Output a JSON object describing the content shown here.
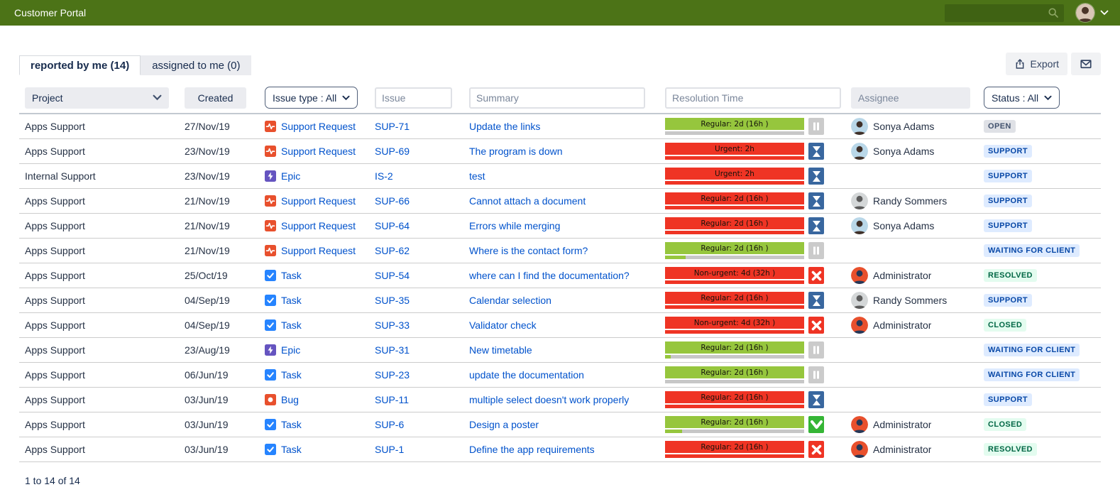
{
  "topbar": {
    "title": "Customer Portal",
    "search_value": ""
  },
  "tabs": [
    {
      "label": "reported by me (14)",
      "active": true
    },
    {
      "label": "assigned to me (0)",
      "active": false
    }
  ],
  "toolbar": {
    "export_label": "Export",
    "email_icon": "envelope-icon"
  },
  "filters": {
    "project_label": "Project",
    "created_label": "Created",
    "issue_type_label": "Issue type : All",
    "issue_placeholder": "Issue",
    "summary_placeholder": "Summary",
    "resolution_placeholder": "Resolution Time",
    "assignee_placeholder": "Assignee",
    "status_label": "Status : All"
  },
  "colors": {
    "header_green": "#4c7317",
    "sla_green": "#96c63d",
    "sla_red": "#ef3424",
    "sla_track_gray": "#c7c7c7",
    "pause_icon_bg": "#cbcbcb",
    "hourglass_icon_bg": "#39679f",
    "x_icon_bg": "#ef3424",
    "check_icon_bg": "#35b535",
    "link_blue": "#0052cc",
    "badge_gray_bg": "#dfe1e6",
    "badge_blue_bg": "#deebff",
    "badge_green_bg": "#e3fcef"
  },
  "table": {
    "rows": [
      {
        "project": "Apps Support",
        "created": "27/Nov/19",
        "type": "support",
        "type_label": "Support Request",
        "issue_key": "SUP-71",
        "summary": "Update the links",
        "sla": {
          "label": "Regular: 2d (16h )",
          "bar": "green",
          "fill_pct": 0,
          "icon": "pause"
        },
        "assignee": "Sonya Adams",
        "avatar": "sonya",
        "status": "OPEN",
        "status_color": "gray"
      },
      {
        "project": "Apps Support",
        "created": "23/Nov/19",
        "type": "support",
        "type_label": "Support Request",
        "issue_key": "SUP-69",
        "summary": "The program is down",
        "sla": {
          "label": "Urgent: 2h",
          "bar": "red",
          "fill_pct": 100,
          "icon": "hourglass"
        },
        "assignee": "Sonya Adams",
        "avatar": "sonya",
        "status": "SUPPORT",
        "status_color": "blue"
      },
      {
        "project": "Internal Support",
        "created": "23/Nov/19",
        "type": "epic",
        "type_label": "Epic",
        "issue_key": "IS-2",
        "summary": "test",
        "sla": {
          "label": "Urgent: 2h",
          "bar": "red",
          "fill_pct": 100,
          "icon": "hourglass"
        },
        "assignee": "",
        "avatar": null,
        "status": "SUPPORT",
        "status_color": "blue"
      },
      {
        "project": "Apps Support",
        "created": "21/Nov/19",
        "type": "support",
        "type_label": "Support Request",
        "issue_key": "SUP-66",
        "summary": "Cannot attach a document",
        "sla": {
          "label": "Regular: 2d (16h )",
          "bar": "red",
          "fill_pct": 100,
          "icon": "hourglass"
        },
        "assignee": "Randy Sommers",
        "avatar": "randy",
        "status": "SUPPORT",
        "status_color": "blue"
      },
      {
        "project": "Apps Support",
        "created": "21/Nov/19",
        "type": "support",
        "type_label": "Support Request",
        "issue_key": "SUP-64",
        "summary": "Errors while merging",
        "sla": {
          "label": "Regular: 2d (16h )",
          "bar": "red",
          "fill_pct": 100,
          "icon": "hourglass"
        },
        "assignee": "Sonya Adams",
        "avatar": "sonya",
        "status": "SUPPORT",
        "status_color": "blue"
      },
      {
        "project": "Apps Support",
        "created": "21/Nov/19",
        "type": "support",
        "type_label": "Support Request",
        "issue_key": "SUP-62",
        "summary": "Where is the contact form?",
        "sla": {
          "label": "Regular: 2d (16h )",
          "bar": "green",
          "fill_pct": 15,
          "icon": "pause"
        },
        "assignee": "",
        "avatar": null,
        "status": "WAITING FOR CLIENT",
        "status_color": "blue"
      },
      {
        "project": "Apps Support",
        "created": "25/Oct/19",
        "type": "task",
        "type_label": "Task",
        "issue_key": "SUP-54",
        "summary": "where can I find the documentation?",
        "sla": {
          "label": "Non-urgent: 4d (32h )",
          "bar": "red",
          "fill_pct": 100,
          "icon": "x"
        },
        "assignee": "Administrator",
        "avatar": "admin",
        "status": "RESOLVED",
        "status_color": "green"
      },
      {
        "project": "Apps Support",
        "created": "04/Sep/19",
        "type": "task",
        "type_label": "Task",
        "issue_key": "SUP-35",
        "summary": "Calendar selection",
        "sla": {
          "label": "Regular: 2d (16h )",
          "bar": "red",
          "fill_pct": 100,
          "icon": "hourglass"
        },
        "assignee": "Randy Sommers",
        "avatar": "randy",
        "status": "SUPPORT",
        "status_color": "blue"
      },
      {
        "project": "Apps Support",
        "created": "04/Sep/19",
        "type": "task",
        "type_label": "Task",
        "issue_key": "SUP-33",
        "summary": "Validator check",
        "sla": {
          "label": "Non-urgent: 4d (32h )",
          "bar": "red",
          "fill_pct": 100,
          "icon": "x"
        },
        "assignee": "Administrator",
        "avatar": "admin",
        "status": "CLOSED",
        "status_color": "green"
      },
      {
        "project": "Apps Support",
        "created": "23/Aug/19",
        "type": "epic",
        "type_label": "Epic",
        "issue_key": "SUP-31",
        "summary": "New timetable",
        "sla": {
          "label": "Regular: 2d (16h )",
          "bar": "green",
          "fill_pct": 4,
          "icon": "pause"
        },
        "assignee": "",
        "avatar": null,
        "status": "WAITING FOR CLIENT",
        "status_color": "blue"
      },
      {
        "project": "Apps Support",
        "created": "06/Jun/19",
        "type": "task",
        "type_label": "Task",
        "issue_key": "SUP-23",
        "summary": "update the documentation",
        "sla": {
          "label": "Regular: 2d (16h )",
          "bar": "green",
          "fill_pct": 0,
          "icon": "pause"
        },
        "assignee": "",
        "avatar": null,
        "status": "WAITING FOR CLIENT",
        "status_color": "blue"
      },
      {
        "project": "Apps Support",
        "created": "03/Jun/19",
        "type": "bug",
        "type_label": "Bug",
        "issue_key": "SUP-11",
        "summary": "multiple select doesn't work properly",
        "sla": {
          "label": "Regular: 2d (16h )",
          "bar": "red",
          "fill_pct": 100,
          "icon": "hourglass"
        },
        "assignee": "",
        "avatar": null,
        "status": "SUPPORT",
        "status_color": "blue"
      },
      {
        "project": "Apps Support",
        "created": "03/Jun/19",
        "type": "task",
        "type_label": "Task",
        "issue_key": "SUP-6",
        "summary": "Design a poster",
        "sla": {
          "label": "Regular: 2d (16h )",
          "bar": "green",
          "fill_pct": 12,
          "icon": "check"
        },
        "assignee": "Administrator",
        "avatar": "admin",
        "status": "CLOSED",
        "status_color": "green"
      },
      {
        "project": "Apps Support",
        "created": "03/Jun/19",
        "type": "task",
        "type_label": "Task",
        "issue_key": "SUP-1",
        "summary": "Define the app requirements",
        "sla": {
          "label": "Regular: 2d (16h )",
          "bar": "red",
          "fill_pct": 100,
          "icon": "x"
        },
        "assignee": "Administrator",
        "avatar": "admin",
        "status": "RESOLVED",
        "status_color": "green"
      }
    ]
  },
  "footer": {
    "count_text": "1 to 14 of 14"
  }
}
